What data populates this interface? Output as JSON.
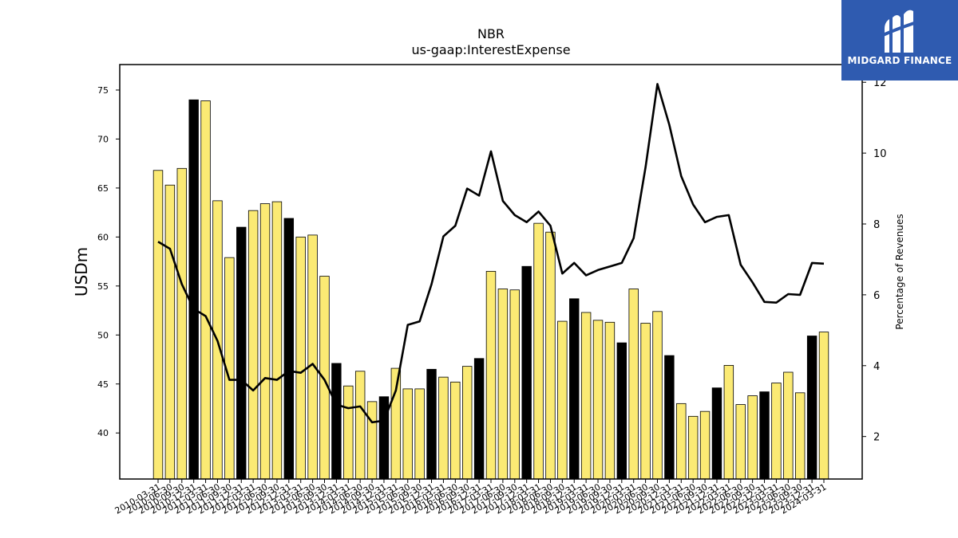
{
  "chart_data": {
    "type": "bar+line",
    "title": "NBR",
    "subtitle": "us-gaap:InterestExpense",
    "ylabel": "USDm",
    "y2label": "Percentage of Revenues",
    "ylim": [
      35.3,
      77.6
    ],
    "y2lim": [
      0.8,
      12.5
    ],
    "yticks": [
      40,
      45,
      50,
      55,
      60,
      65,
      70,
      75
    ],
    "y2ticks": [
      2,
      4,
      6,
      8,
      10,
      12
    ],
    "categories": [
      "2010-03-31",
      "2010-06-30",
      "2010-09-30",
      "2010-12-31",
      "2011-03-31",
      "2011-06-30",
      "2011-09-30",
      "2011-12-31",
      "2012-03-31",
      "2012-06-30",
      "2012-09-30",
      "2012-12-31",
      "2013-03-31",
      "2013-06-30",
      "2013-09-30",
      "2013-12-31",
      "2014-03-31",
      "2014-06-30",
      "2014-09-30",
      "2014-12-31",
      "2015-03-31",
      "2015-06-30",
      "2015-09-30",
      "2015-12-31",
      "2016-03-31",
      "2016-06-30",
      "2016-09-30",
      "2016-12-31",
      "2017-03-31",
      "2017-06-30",
      "2017-09-30",
      "2017-12-31",
      "2018-03-31",
      "2018-06-30",
      "2018-09-30",
      "2018-12-31",
      "2019-03-31",
      "2019-06-30",
      "2019-09-30",
      "2019-12-31",
      "2020-03-31",
      "2020-06-30",
      "2020-09-30",
      "2020-12-31",
      "2021-03-31",
      "2021-06-30",
      "2021-09-30",
      "2021-12-31",
      "2022-03-31",
      "2022-06-30",
      "2022-09-30",
      "2022-12-31",
      "2023-03-31",
      "2023-06-30",
      "2023-09-30",
      "2023-12-31",
      "2024-03-31"
    ],
    "series": [
      {
        "kind": "bar",
        "values": [
          66.8,
          65.3,
          67.0,
          74.0,
          73.9,
          63.7,
          57.9,
          61.0,
          62.7,
          63.4,
          63.6,
          61.9,
          60.0,
          60.2,
          56.0,
          47.1,
          44.8,
          46.3,
          43.2,
          43.7,
          46.6,
          44.5,
          44.5,
          46.5,
          45.7,
          45.2,
          46.8,
          47.6,
          56.5,
          54.7,
          54.6,
          57.0,
          61.4,
          60.5,
          51.4,
          53.7,
          52.3,
          51.5,
          51.3,
          49.2,
          54.7,
          51.2,
          52.4,
          47.9,
          43.0,
          41.7,
          42.2,
          44.6,
          46.9,
          42.9,
          43.8,
          44.2,
          45.1,
          46.2,
          44.1,
          49.9,
          50.3
        ]
      },
      {
        "kind": "line",
        "axis": "right",
        "values": [
          7.5,
          7.3,
          6.3,
          5.6,
          5.4,
          4.7,
          3.6,
          3.6,
          3.3,
          3.65,
          3.6,
          3.85,
          3.8,
          4.05,
          3.6,
          2.9,
          2.8,
          2.85,
          2.4,
          2.45,
          3.3,
          5.15,
          5.25,
          6.3,
          7.65,
          7.95,
          9.0,
          8.8,
          10.05,
          8.65,
          8.25,
          8.05,
          8.35,
          7.95,
          6.6,
          6.9,
          6.55,
          6.7,
          6.8,
          6.9,
          7.6,
          9.6,
          11.95,
          10.8,
          9.35,
          8.55,
          8.05,
          8.2,
          8.25,
          6.85,
          6.35,
          5.8,
          5.78,
          6.02,
          6.0,
          6.9,
          6.88
        ]
      }
    ],
    "highlight_color": "#000000",
    "bar_color": "#fbea74",
    "line_color": "#000000"
  },
  "logo": {
    "text": "MIDGARD FINANCE",
    "bg_color": "#2f5bb0"
  }
}
